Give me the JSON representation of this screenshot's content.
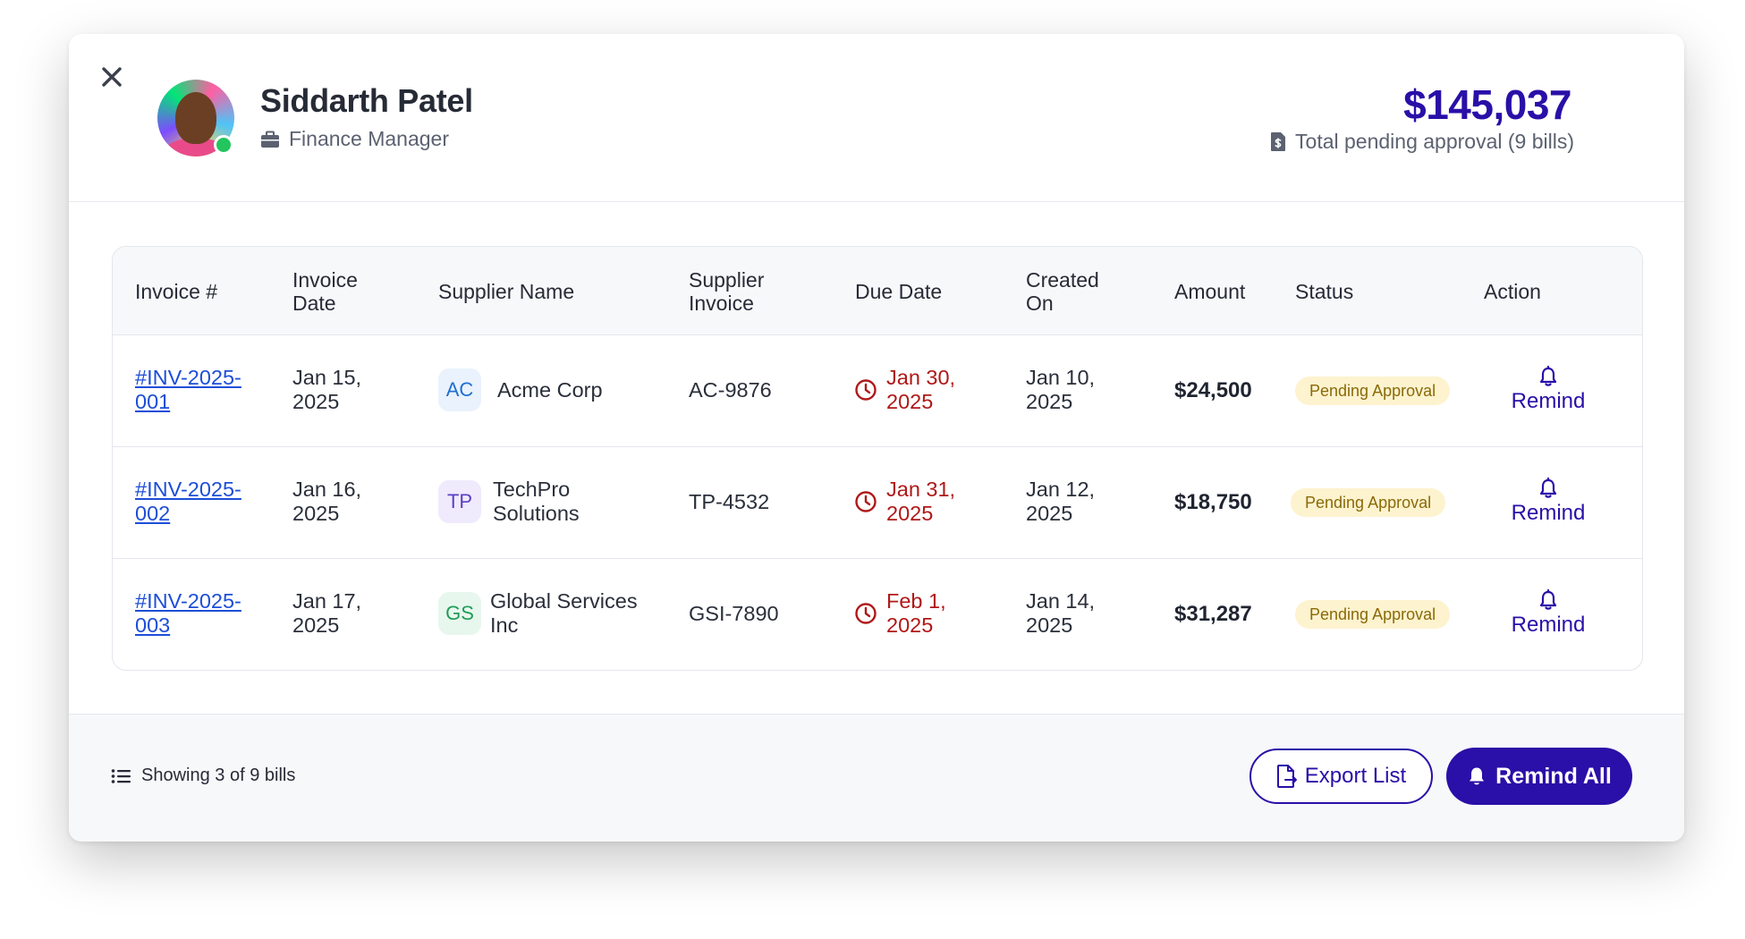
{
  "user": {
    "name": "Siddarth Patel",
    "role": "Finance Manager"
  },
  "summary": {
    "total_amount": "$145,037",
    "total_label": "Total pending approval (9 bills)"
  },
  "table": {
    "headers": {
      "invoice": "Invoice #",
      "invoice_date_1": "Invoice",
      "invoice_date_2": "Date",
      "supplier_name": "Supplier Name",
      "supplier_invoice_1": "Supplier",
      "supplier_invoice_2": "Invoice",
      "due_date": "Due Date",
      "created_on_1": "Created",
      "created_on_2": "On",
      "amount": "Amount",
      "status": "Status",
      "action": "Action"
    },
    "rows": [
      {
        "invoice_1": "#INV-2025-",
        "invoice_2": "001",
        "date_1": "Jan 15,",
        "date_2": "2025",
        "supplier_initials": "AC",
        "supplier_1": "Acme Corp",
        "supplier_2": "",
        "supplier_invoice": "AC-9876",
        "due_1": "Jan 30,",
        "due_2": "2025",
        "created_1": "Jan 10,",
        "created_2": "2025",
        "amount": "$24,500",
        "status": "Pending Approval",
        "action": "Remind"
      },
      {
        "invoice_1": "#INV-2025-",
        "invoice_2": "002",
        "date_1": "Jan 16,",
        "date_2": "2025",
        "supplier_initials": "TP",
        "supplier_1": "TechPro",
        "supplier_2": "Solutions",
        "supplier_invoice": "TP-4532",
        "due_1": "Jan 31,",
        "due_2": "2025",
        "created_1": "Jan 12,",
        "created_2": "2025",
        "amount": "$18,750",
        "status": "Pending Approval",
        "action": "Remind"
      },
      {
        "invoice_1": "#INV-2025-",
        "invoice_2": "003",
        "date_1": "Jan 17,",
        "date_2": "2025",
        "supplier_initials": "GS",
        "supplier_1": "Global Services",
        "supplier_2": "Inc",
        "supplier_invoice": "GSI-7890",
        "due_1": "Feb 1,",
        "due_2": "2025",
        "created_1": "Jan 14,",
        "created_2": "2025",
        "amount": "$31,287",
        "status": "Pending Approval",
        "action": "Remind"
      }
    ]
  },
  "footer": {
    "showing": "Showing 3 of 9 bills",
    "export_label": "Export List",
    "remind_all_label": "Remind All"
  },
  "icons": {
    "close": "close-icon",
    "role": "briefcase-icon",
    "total": "dollar-file-icon",
    "due": "clock-icon",
    "remind": "bell-icon",
    "list": "list-icon",
    "export": "file-export-icon"
  },
  "colors": {
    "primary": "#2a0fa8",
    "link": "#1d4ed8",
    "overdue": "#b01818",
    "status_bg": "#fdf3cf",
    "status_text": "#8a6a08",
    "online": "#22c55e"
  }
}
